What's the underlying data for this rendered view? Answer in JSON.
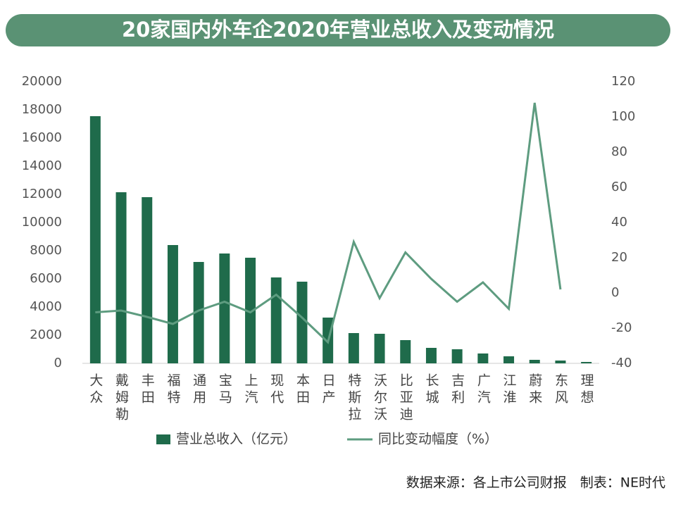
{
  "chart_data": {
    "type": "bar_line",
    "title": "20家国内外车企2020年营业总收入及变动情况",
    "categories": [
      "大众",
      "戴姆勒",
      "丰田",
      "福特",
      "通用",
      "宝马",
      "上汽",
      "现代",
      "本田",
      "日产",
      "特斯拉",
      "沃尔沃",
      "比亚迪",
      "长城",
      "吉利",
      "广汽",
      "江淮",
      "蔚来",
      "东风",
      "理想"
    ],
    "series": [
      {
        "name": "营业总收入（亿元）",
        "color": "#1f6b4b",
        "type": "bar",
        "values": [
          17550,
          12150,
          11800,
          8400,
          7200,
          7800,
          7500,
          6100,
          5800,
          3250,
          2150,
          2100,
          1650,
          1100,
          1000,
          700,
          500,
          250,
          200,
          100
        ]
      },
      {
        "name": "同比变动幅度（%）",
        "color": "#5e9c80",
        "type": "line",
        "axis": "y2",
        "values": [
          -11,
          -10,
          -13.6,
          -17.6,
          -10,
          -5,
          -11,
          -1,
          -14,
          -28,
          29,
          -3,
          23,
          8,
          -5,
          6,
          -9,
          108,
          2,
          null
        ]
      }
    ],
    "ylim": [
      0,
      20000
    ],
    "yticks": [
      0,
      2000,
      4000,
      6000,
      8000,
      10000,
      12000,
      14000,
      16000,
      18000,
      20000
    ],
    "y2lim": [
      -40,
      120
    ],
    "y2ticks": [
      -40,
      -20,
      0,
      20,
      40,
      60,
      80,
      100,
      120
    ],
    "source": "数据来源：各上市公司财报　制表：NE时代"
  }
}
